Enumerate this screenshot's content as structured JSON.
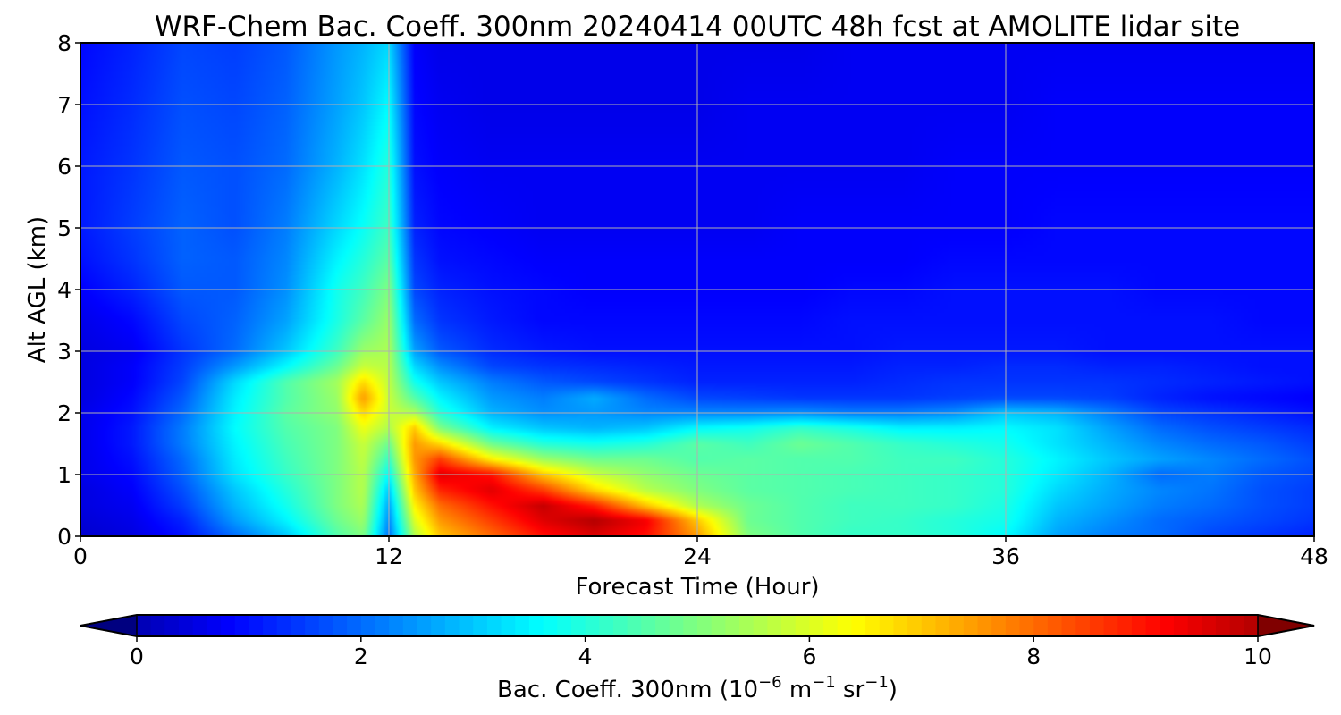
{
  "chart_data": {
    "type": "heatmap",
    "title": "WRF-Chem Bac. Coeff. 300nm  20240414 00UTC 48h fcst at AMOLITE lidar site",
    "xlabel": "Forecast Time (Hour)",
    "ylabel": "Alt AGL (km)",
    "xlim": [
      0,
      48
    ],
    "ylim": [
      0,
      8
    ],
    "x_ticks": [
      0,
      12,
      24,
      36,
      48
    ],
    "y_ticks": [
      0,
      1,
      2,
      3,
      4,
      5,
      6,
      7,
      8
    ],
    "grid": true,
    "colormap": "jet",
    "colorbar": {
      "orientation": "horizontal",
      "placement": "bottom",
      "extend": "both",
      "range": [
        0,
        10
      ],
      "ticks": [
        0,
        2,
        4,
        6,
        8,
        10
      ],
      "label_main": "Bac. Coeff. 300nm  (10",
      "label_exp1": "−6",
      "label_mid": " m",
      "label_exp2": "−1",
      "label_mid2": " sr",
      "label_exp3": "−1",
      "label_end": ")"
    },
    "altitudes_km": [
      0,
      0.25,
      0.5,
      0.75,
      1,
      1.25,
      1.5,
      1.75,
      2,
      2.25,
      2.5,
      2.75,
      3,
      3.5,
      4,
      4.5,
      5,
      6,
      7,
      8
    ],
    "forecast_hours": [
      0,
      2,
      4,
      6,
      8,
      10,
      11,
      12,
      13,
      14,
      16,
      18,
      20,
      22,
      24,
      26,
      28,
      30,
      32,
      34,
      36,
      38,
      40,
      42,
      44,
      46,
      48
    ],
    "values_by_altitude": [
      [
        0.3,
        0.5,
        1.0,
        2.0,
        3.0,
        4.5,
        5.0,
        2.0,
        5.5,
        7.0,
        8.0,
        9.0,
        9.5,
        9.0,
        7.5,
        5.0,
        4.5,
        4.2,
        4.2,
        4.0,
        3.6,
        2.6,
        2.2,
        2.0,
        1.6,
        1.4,
        1.2
      ],
      [
        0.4,
        0.6,
        1.2,
        2.5,
        3.5,
        4.8,
        5.3,
        2.3,
        6.0,
        7.5,
        8.5,
        9.5,
        10.0,
        9.3,
        7.0,
        4.8,
        4.5,
        4.3,
        4.2,
        4.0,
        3.8,
        2.8,
        2.4,
        2.0,
        1.8,
        1.6,
        1.4
      ],
      [
        0.5,
        0.7,
        1.5,
        2.8,
        3.8,
        5.0,
        5.5,
        2.6,
        6.5,
        8.0,
        9.0,
        9.8,
        8.8,
        7.0,
        5.5,
        4.8,
        4.5,
        4.3,
        4.3,
        4.2,
        3.9,
        3.0,
        2.6,
        2.2,
        2.0,
        1.7,
        1.5
      ],
      [
        0.5,
        0.8,
        1.7,
        3.0,
        4.0,
        5.0,
        5.6,
        3.0,
        7.0,
        8.8,
        9.5,
        8.5,
        6.8,
        5.6,
        5.0,
        4.6,
        4.5,
        4.4,
        4.3,
        4.2,
        4.0,
        3.2,
        2.7,
        2.3,
        2.1,
        1.7,
        1.5
      ],
      [
        0.6,
        0.9,
        1.9,
        3.3,
        4.2,
        5.0,
        5.6,
        3.6,
        7.3,
        9.5,
        9.0,
        7.0,
        5.8,
        5.2,
        4.8,
        4.6,
        4.5,
        4.4,
        4.3,
        4.2,
        4.0,
        3.4,
        2.8,
        2.0,
        2.2,
        1.8,
        1.6
      ],
      [
        0.6,
        1.0,
        2.0,
        3.4,
        4.3,
        5.0,
        5.7,
        4.2,
        7.5,
        8.5,
        6.5,
        5.3,
        4.8,
        4.8,
        4.5,
        4.6,
        4.5,
        4.5,
        4.3,
        4.3,
        4.0,
        3.5,
        3.0,
        2.6,
        2.3,
        2.0,
        1.7
      ],
      [
        0.6,
        1.1,
        2.2,
        3.5,
        4.4,
        5.0,
        5.8,
        4.8,
        7.5,
        6.8,
        4.8,
        4.0,
        3.8,
        4.0,
        4.6,
        4.3,
        4.8,
        4.5,
        4.2,
        4.0,
        3.8,
        3.3,
        2.8,
        2.3,
        2.0,
        1.8,
        1.5
      ],
      [
        0.6,
        1.1,
        2.2,
        3.6,
        4.5,
        5.0,
        6.2,
        5.5,
        7.0,
        5.0,
        3.5,
        3.0,
        2.8,
        3.0,
        3.6,
        3.8,
        4.2,
        3.9,
        3.5,
        3.5,
        3.6,
        3.3,
        2.6,
        2.0,
        1.7,
        1.5,
        1.3
      ],
      [
        0.6,
        1.0,
        2.0,
        3.5,
        4.6,
        5.2,
        6.8,
        5.8,
        5.5,
        4.0,
        2.8,
        2.4,
        2.5,
        2.3,
        2.3,
        2.3,
        2.4,
        2.2,
        2.2,
        2.4,
        3.0,
        2.8,
        2.2,
        1.6,
        1.4,
        1.2,
        1.0
      ],
      [
        0.5,
        0.9,
        1.8,
        3.4,
        4.5,
        5.3,
        7.5,
        5.8,
        4.5,
        3.5,
        2.5,
        2.2,
        2.7,
        2.0,
        1.6,
        1.5,
        1.4,
        1.4,
        1.4,
        1.5,
        1.6,
        1.6,
        1.5,
        1.2,
        1.0,
        0.9,
        0.8
      ],
      [
        0.5,
        0.8,
        1.6,
        3.2,
        4.5,
        5.4,
        6.8,
        5.7,
        3.8,
        3.0,
        2.2,
        1.8,
        1.6,
        1.4,
        1.2,
        1.2,
        1.2,
        1.2,
        1.3,
        1.4,
        1.4,
        1.4,
        1.4,
        1.3,
        1.2,
        1.1,
        1.0
      ],
      [
        0.5,
        0.8,
        1.5,
        2.5,
        3.6,
        4.8,
        5.8,
        5.6,
        3.2,
        2.4,
        1.6,
        1.4,
        1.3,
        1.2,
        1.1,
        1.1,
        1.1,
        1.1,
        1.2,
        1.2,
        1.3,
        1.3,
        1.2,
        1.2,
        1.1,
        1.0,
        1.0
      ],
      [
        0.5,
        0.7,
        1.4,
        2.0,
        3.0,
        4.3,
        5.3,
        5.5,
        2.6,
        1.8,
        1.3,
        1.1,
        1.0,
        1.0,
        1.0,
        1.0,
        1.0,
        1.0,
        1.1,
        1.1,
        1.1,
        1.1,
        1.0,
        1.0,
        1.0,
        1.0,
        1.0
      ],
      [
        0.6,
        0.9,
        1.6,
        1.9,
        2.6,
        3.9,
        4.6,
        5.3,
        2.0,
        1.4,
        1.1,
        0.9,
        0.9,
        0.9,
        0.9,
        0.9,
        0.9,
        1.0,
        1.0,
        1.0,
        1.0,
        1.0,
        1.0,
        1.0,
        1.0,
        0.9,
        0.9
      ],
      [
        0.8,
        1.2,
        1.8,
        1.8,
        2.4,
        3.8,
        4.3,
        5.0,
        1.6,
        1.2,
        1.0,
        0.9,
        0.8,
        0.8,
        0.8,
        0.8,
        0.8,
        0.9,
        0.9,
        1.0,
        1.0,
        1.0,
        1.0,
        0.9,
        0.9,
        0.9,
        0.9
      ],
      [
        1.0,
        1.4,
        1.9,
        1.8,
        2.3,
        3.5,
        4.0,
        4.6,
        1.4,
        1.0,
        0.9,
        0.8,
        0.8,
        0.8,
        0.8,
        0.8,
        0.8,
        0.8,
        0.8,
        0.9,
        0.9,
        0.9,
        0.9,
        0.9,
        0.9,
        0.9,
        0.9
      ],
      [
        1.1,
        1.5,
        1.9,
        1.7,
        2.2,
        3.2,
        3.7,
        4.3,
        1.2,
        0.9,
        0.8,
        0.7,
        0.7,
        0.7,
        0.7,
        0.7,
        0.8,
        0.8,
        0.8,
        0.8,
        0.8,
        0.9,
        0.9,
        0.9,
        0.9,
        0.9,
        0.9
      ],
      [
        1.1,
        1.4,
        1.8,
        1.7,
        2.0,
        2.8,
        3.3,
        4.0,
        1.0,
        0.8,
        0.7,
        0.7,
        0.7,
        0.7,
        0.7,
        0.7,
        0.7,
        0.7,
        0.7,
        0.8,
        0.8,
        0.8,
        0.8,
        0.8,
        0.8,
        0.8,
        0.8
      ],
      [
        1.0,
        1.3,
        1.7,
        1.6,
        1.9,
        2.6,
        3.0,
        3.6,
        0.9,
        0.7,
        0.6,
        0.6,
        0.6,
        0.6,
        0.6,
        0.7,
        0.7,
        0.7,
        0.7,
        0.7,
        0.7,
        0.8,
        0.8,
        0.8,
        0.8,
        0.8,
        0.8
      ],
      [
        0.9,
        1.2,
        1.6,
        1.5,
        1.8,
        2.5,
        2.8,
        3.2,
        0.8,
        0.6,
        0.6,
        0.6,
        0.6,
        0.6,
        0.6,
        0.6,
        0.6,
        0.7,
        0.7,
        0.7,
        0.7,
        0.7,
        0.7,
        0.7,
        0.7,
        0.7,
        0.7
      ]
    ]
  }
}
